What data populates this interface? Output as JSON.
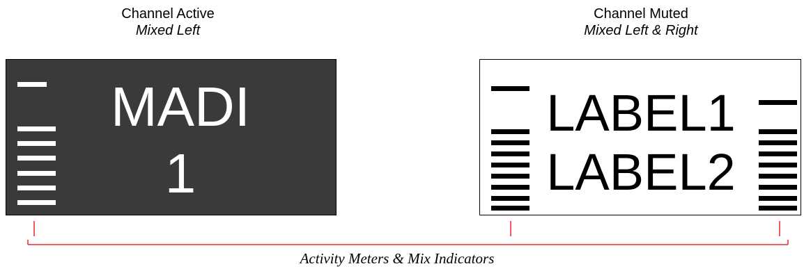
{
  "panels": {
    "active": {
      "caption_title": "Channel Active",
      "caption_subtitle": "Mixed Left",
      "line1": "MADI",
      "line2": "1",
      "background": "#3a3a3a",
      "foreground": "#ffffff",
      "left_meter_top_marker": true,
      "left_meter_level_bars": 5
    },
    "muted": {
      "caption_title": "Channel Muted",
      "caption_subtitle": "Mixed Left & Right",
      "line1": "LABEL1",
      "line2": "LABEL2",
      "background": "#ffffff",
      "foreground": "#000000",
      "left_meter_top_marker": true,
      "left_meter_level_bars": 8,
      "right_meter_top_marker": true,
      "right_meter_level_bars": 8
    }
  },
  "annotation": {
    "text": "Activity Meters & Mix Indicators",
    "color": "#e8262a"
  }
}
